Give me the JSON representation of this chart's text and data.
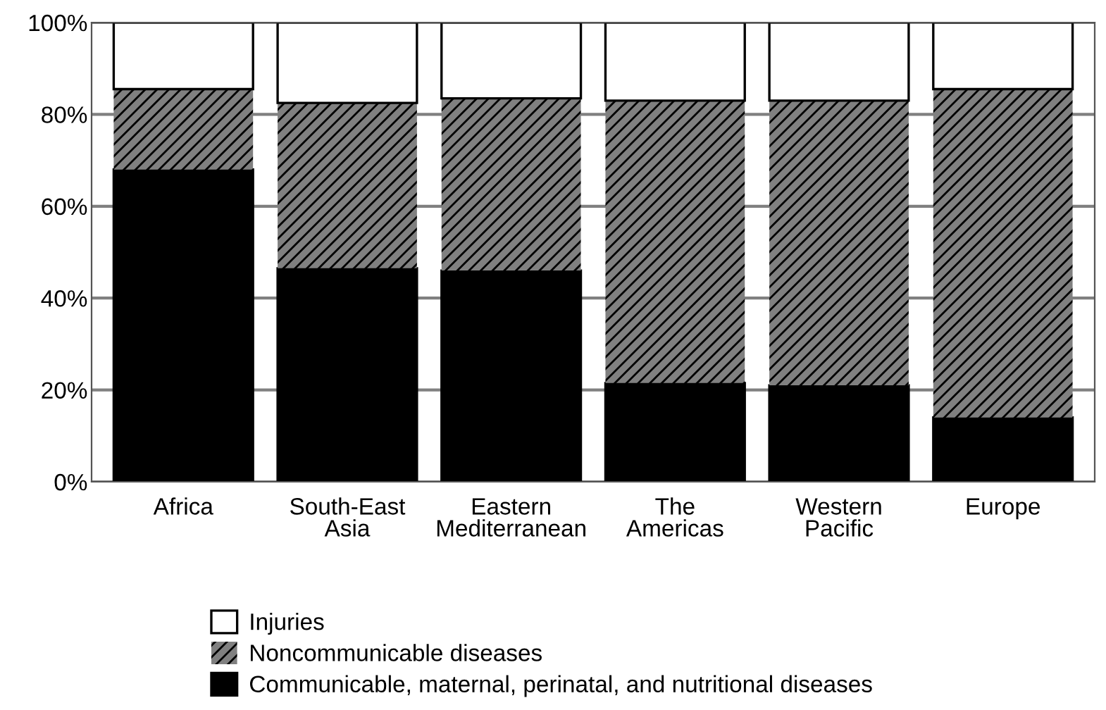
{
  "chart_data": {
    "type": "bar",
    "stacked": true,
    "categories": [
      "Africa",
      "South-East\nAsia",
      "Eastern\nMediterranean",
      "The\nAmericas",
      "Western\nPacific",
      "Europe"
    ],
    "series": [
      {
        "name": "Communicable, maternal, perinatal, and nutritional diseases",
        "color": "#000000",
        "values": [
          68,
          46.5,
          46,
          21.5,
          21,
          14
        ]
      },
      {
        "name": "Noncommunicable diseases",
        "color": "#808080",
        "values": [
          17.5,
          36,
          37.5,
          61.5,
          62,
          71.5
        ]
      },
      {
        "name": "Injuries",
        "color": "#ffffff",
        "values": [
          14.5,
          17.5,
          16.5,
          17,
          17,
          14.5
        ]
      }
    ],
    "ylim": [
      0,
      100
    ],
    "yticks": [
      {
        "value": 0,
        "label": "0%"
      },
      {
        "value": 20,
        "label": "20%"
      },
      {
        "value": 40,
        "label": "40%"
      },
      {
        "value": 60,
        "label": "60%"
      },
      {
        "value": 80,
        "label": "80%"
      },
      {
        "value": 100,
        "label": "100%"
      }
    ],
    "grid": "y",
    "legend": "bottom"
  }
}
